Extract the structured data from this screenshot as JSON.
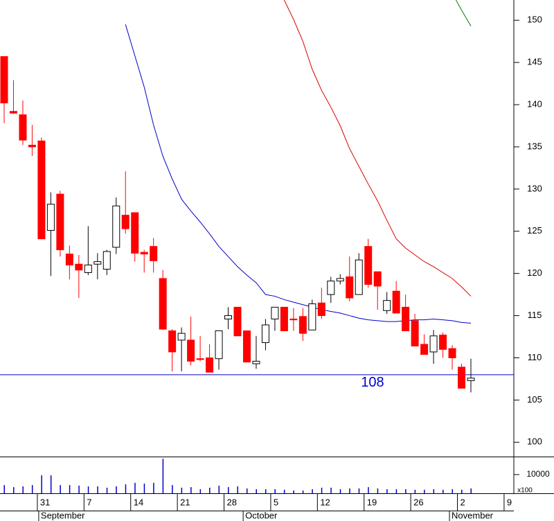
{
  "chart_data": {
    "type": "candlestick",
    "up_color": "#ffffff",
    "down_color": "#ff0000",
    "outline_color": "#000000",
    "open": [
      145.7,
      139.2,
      138.8,
      135.2,
      135.7,
      125.1,
      129.4,
      122.3,
      121.1,
      120.1,
      121.1,
      120.5,
      123.1,
      126.9,
      127.2,
      122.5,
      123.2,
      119.4,
      113.2,
      112.1,
      112.1,
      109.9,
      110.0,
      109.9,
      114.6,
      116.0,
      113.2,
      109.3,
      111.8,
      114.6,
      116.0,
      114.6,
      114.9,
      113.3,
      116.5,
      117.5,
      119.1,
      119.6,
      117.5,
      123.2,
      120.2,
      115.6,
      117.9,
      116.0,
      114.4,
      111.6,
      110.7,
      112.7,
      111.1,
      108.9,
      107.3
    ],
    "high": [
      145.7,
      142.9,
      140.5,
      137.6,
      136.1,
      129.6,
      129.8,
      123.3,
      122.2,
      125.6,
      122.4,
      122.8,
      129.0,
      132.1,
      127.2,
      122.8,
      124.2,
      120.4,
      113.4,
      113.6,
      114.9,
      112.6,
      111.6,
      113.2,
      116.0,
      116.0,
      113.2,
      112.6,
      114.6,
      116.0,
      116.0,
      115.9,
      115.9,
      116.9,
      118.3,
      119.6,
      119.9,
      122.0,
      122.4,
      124.1,
      120.2,
      117.8,
      119.1,
      117.5,
      115.2,
      112.8,
      113.3,
      113.0,
      111.5,
      109.3,
      109.9
    ],
    "low": [
      137.8,
      138.9,
      135.2,
      133.9,
      124.1,
      119.7,
      122.0,
      119.3,
      117.1,
      119.8,
      119.3,
      119.8,
      122.3,
      124.7,
      121.4,
      120.1,
      120.1,
      113.3,
      108.4,
      108.4,
      109.1,
      109.6,
      108.3,
      108.6,
      113.4,
      112.6,
      109.5,
      108.7,
      110.9,
      113.2,
      113.2,
      113.2,
      112.0,
      113.3,
      114.6,
      116.5,
      118.7,
      116.7,
      117.5,
      118.3,
      115.7,
      115.2,
      115.3,
      113.2,
      111.4,
      110.4,
      109.3,
      110.0,
      108.6,
      106.4,
      105.9
    ],
    "close": [
      140.2,
      139.0,
      135.8,
      135.0,
      124.1,
      128.2,
      122.8,
      121.0,
      120.4,
      121.0,
      121.4,
      122.6,
      128.0,
      125.3,
      122.4,
      122.3,
      121.5,
      113.4,
      110.7,
      112.9,
      109.6,
      109.8,
      108.3,
      113.2,
      115.0,
      112.6,
      109.5,
      109.6,
      113.9,
      116.0,
      113.2,
      114.5,
      112.9,
      116.4,
      115.0,
      119.1,
      119.4,
      117.1,
      121.6,
      118.7,
      118.5,
      116.8,
      115.3,
      113.2,
      111.4,
      110.4,
      112.6,
      111.0,
      110.0,
      106.4,
      107.6
    ],
    "moving_averages": [
      {
        "color": "#0000c8",
        "values": [
          null,
          null,
          null,
          null,
          null,
          null,
          null,
          null,
          null,
          null,
          null,
          null,
          null,
          149.5,
          145.8,
          142.1,
          137.6,
          133.9,
          131.2,
          128.8,
          127.4,
          126.1,
          124.7,
          123.2,
          122.0,
          120.8,
          119.8,
          118.9,
          117.5,
          117.3,
          116.9,
          116.6,
          116.3,
          116.0,
          115.7,
          115.5,
          115.3,
          115.0,
          114.7,
          114.5,
          114.4,
          114.3,
          114.3,
          114.4,
          114.5,
          114.5,
          114.6,
          114.5,
          114.4,
          114.2,
          114.1
        ]
      },
      {
        "color": "#dd0000",
        "values": [
          null,
          null,
          null,
          null,
          null,
          null,
          null,
          null,
          null,
          null,
          null,
          null,
          null,
          null,
          null,
          null,
          null,
          null,
          null,
          null,
          null,
          null,
          null,
          null,
          null,
          null,
          null,
          null,
          null,
          null,
          152.4,
          150.1,
          147.5,
          144.2,
          141.7,
          139.7,
          137.5,
          134.8,
          132.7,
          130.6,
          128.6,
          126.3,
          124.1,
          123.0,
          122.2,
          121.4,
          120.8,
          120.1,
          119.4,
          118.4,
          117.3
        ]
      },
      {
        "color": "#008000",
        "values": [
          null,
          null,
          null,
          null,
          null,
          null,
          null,
          null,
          null,
          null,
          null,
          null,
          null,
          null,
          null,
          null,
          null,
          null,
          null,
          null,
          null,
          null,
          null,
          null,
          null,
          null,
          null,
          null,
          null,
          null,
          null,
          null,
          null,
          null,
          null,
          null,
          null,
          null,
          null,
          null,
          null,
          null,
          null,
          null,
          null,
          null,
          null,
          null,
          153.2,
          151.2,
          149.3
        ]
      }
    ],
    "hline": {
      "value": 108,
      "color": "#0000c8"
    },
    "ylim": [
      98.3,
      152.4
    ],
    "yticks": [
      100,
      105,
      110,
      115,
      120,
      125,
      130,
      135,
      140,
      145,
      150
    ],
    "volume": {
      "color": "#0000c8",
      "values": [
        4400,
        3300,
        3700,
        4400,
        9600,
        9600,
        4400,
        4400,
        4100,
        3700,
        3700,
        3000,
        3700,
        4800,
        5600,
        5200,
        5600,
        18500,
        4400,
        3000,
        3300,
        2200,
        3000,
        4100,
        3300,
        3700,
        2600,
        2200,
        2200,
        2200,
        1900,
        1500,
        1500,
        2200,
        3000,
        3000,
        2200,
        2600,
        2600,
        3300,
        2600,
        2200,
        2200,
        2200,
        1900,
        1900,
        2200,
        1900,
        2200,
        1900,
        2600
      ],
      "ylim": [
        0,
        19260
      ],
      "yticks": [
        10000
      ],
      "unit_label": "x100"
    },
    "xticks": [
      {
        "value": 4,
        "label": "31"
      },
      {
        "value": 9,
        "label": "7"
      },
      {
        "value": 14,
        "label": "14"
      },
      {
        "value": 19,
        "label": "21"
      },
      {
        "value": 24,
        "label": "28"
      },
      {
        "value": 29,
        "label": "5"
      },
      {
        "value": 34,
        "label": "12"
      },
      {
        "value": 39,
        "label": "19"
      },
      {
        "value": 44,
        "label": "26"
      },
      {
        "value": 49,
        "label": "2"
      },
      {
        "value": 54,
        "label": "9"
      }
    ],
    "month_labels": [
      {
        "value": 4,
        "label": "September"
      },
      {
        "value": 25.9,
        "label": "October"
      },
      {
        "value": 48,
        "label": "November"
      }
    ]
  }
}
